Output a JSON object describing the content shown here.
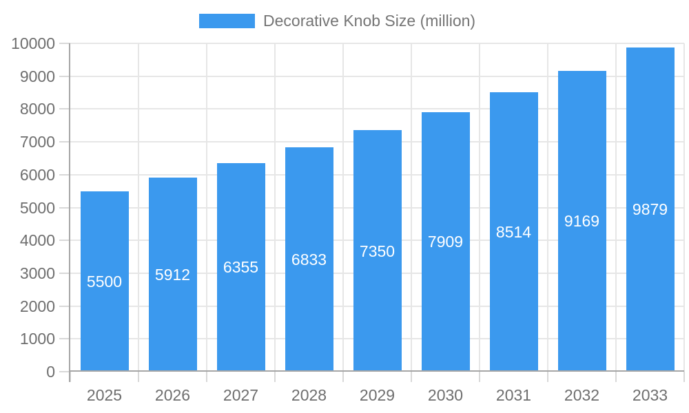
{
  "chart_data": {
    "type": "bar",
    "title": "Decorative Knob Size (million)",
    "categories": [
      "2025",
      "2026",
      "2027",
      "2028",
      "2029",
      "2030",
      "2031",
      "2032",
      "2033"
    ],
    "values": [
      5500,
      5912,
      6355,
      6833,
      7350,
      7909,
      8514,
      9169,
      9879
    ],
    "xlabel": "",
    "ylabel": "",
    "ylim": [
      0,
      10000
    ],
    "ytick_step": 1000,
    "ytick_labels": [
      "0",
      "1000",
      "2000",
      "3000",
      "4000",
      "5000",
      "6000",
      "7000",
      "8000",
      "9000",
      "10000"
    ],
    "grid": true,
    "legend_position": "top",
    "value_labels": "inside-center",
    "colors": {
      "bar": "#3B99EE",
      "value_label": "#FFFFFF",
      "axis": "#A6A6A6",
      "gridline": "#E6E6E6",
      "tick": "#D8D8D8",
      "text": "#6E6E6E",
      "legend_text": "#757575"
    }
  }
}
